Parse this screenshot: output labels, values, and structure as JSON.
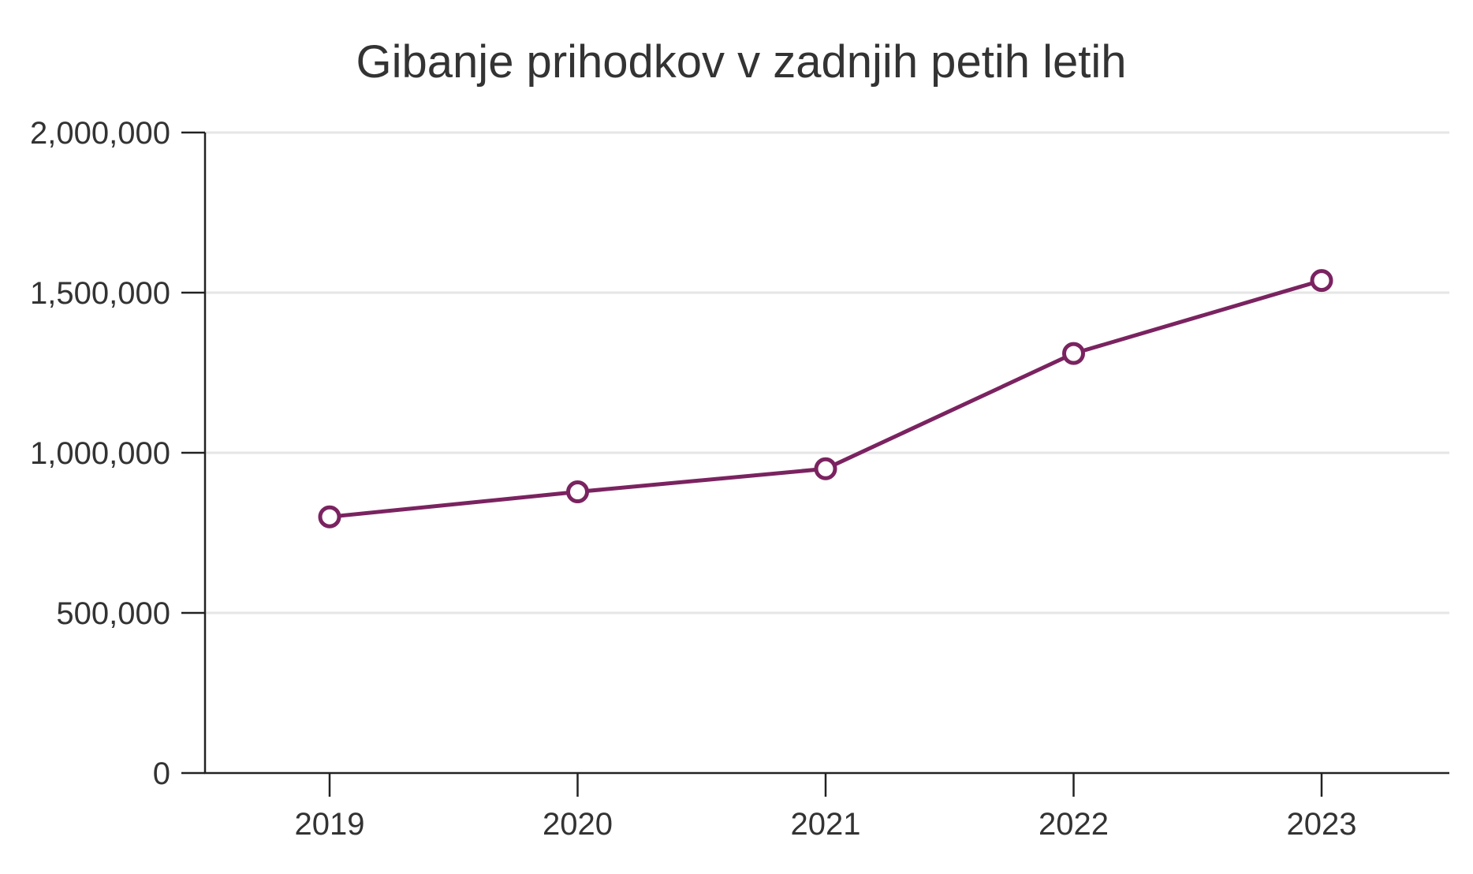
{
  "chart_data": {
    "type": "line",
    "title": "Gibanje prihodkov v zadnjih petih letih",
    "xlabel": "",
    "ylabel": "",
    "categories": [
      "2019",
      "2020",
      "2021",
      "2022",
      "2023"
    ],
    "series": [
      {
        "values": [
          800000,
          878000,
          950000,
          1310000,
          1538000
        ],
        "color": "#7a2360"
      }
    ],
    "ylim": [
      0,
      2000000
    ],
    "yticks": [
      0,
      500000,
      1000000,
      1500000,
      2000000
    ],
    "ytick_labels": [
      "0",
      "500,000",
      "1,000,000",
      "1,500,000",
      "2,000,000"
    ],
    "grid": true,
    "grid_color": "#e6e6e6",
    "axis_color": "#222222",
    "text_color": "#333333",
    "marker": "open-circle"
  }
}
